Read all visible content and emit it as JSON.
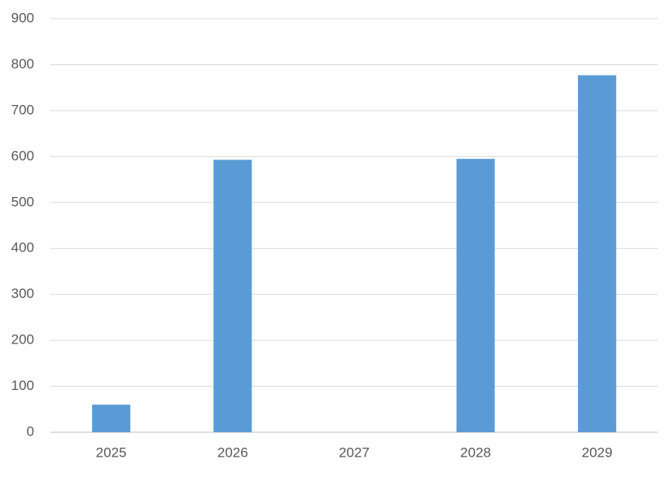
{
  "chart_data": {
    "type": "bar",
    "categories": [
      "2025",
      "2026",
      "2027",
      "2028",
      "2029"
    ],
    "values": [
      60,
      593,
      0,
      595,
      777
    ],
    "color": "#5b9bd5",
    "ylim": [
      0,
      900
    ],
    "yticks": [
      0,
      100,
      200,
      300,
      400,
      500,
      600,
      700,
      800,
      900
    ],
    "grid": true
  }
}
